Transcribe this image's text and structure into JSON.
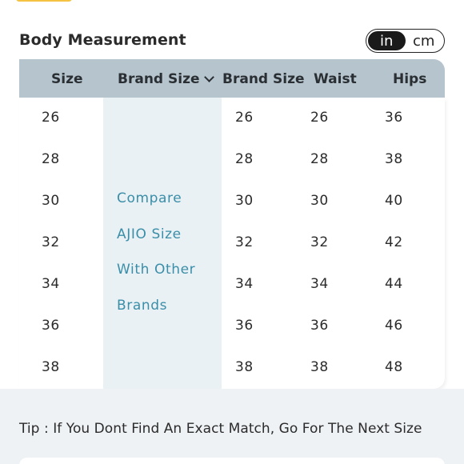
{
  "header": {
    "title": "Body Measurement",
    "unit_toggle": {
      "options": [
        "in",
        "cm"
      ],
      "selected": "in"
    }
  },
  "table": {
    "columns": [
      "Size",
      "Brand Size",
      "Brand Size",
      "Waist",
      "Hips"
    ],
    "compare_lines": [
      "Compare",
      "AJIO Size",
      "With Other",
      "Brands"
    ],
    "rows": [
      {
        "size": "26",
        "brand_size": "26",
        "waist": "26",
        "hips": "36"
      },
      {
        "size": "28",
        "brand_size": "28",
        "waist": "28",
        "hips": "38"
      },
      {
        "size": "30",
        "brand_size": "30",
        "waist": "30",
        "hips": "40"
      },
      {
        "size": "32",
        "brand_size": "32",
        "waist": "32",
        "hips": "42"
      },
      {
        "size": "34",
        "brand_size": "34",
        "waist": "34",
        "hips": "44"
      },
      {
        "size": "36",
        "brand_size": "36",
        "waist": "36",
        "hips": "46"
      },
      {
        "size": "38",
        "brand_size": "38",
        "waist": "38",
        "hips": "48"
      }
    ]
  },
  "footer": {
    "tip": "Tip : If You Dont Find An Exact Match, Go For The Next Size"
  },
  "colors": {
    "header_bg": "#b6c4cd",
    "compare_bg": "#eaf1f5",
    "compare_text": "#3a8ea8",
    "toggle_active": "#1a1a1a",
    "top_tab": "#f5c242"
  }
}
